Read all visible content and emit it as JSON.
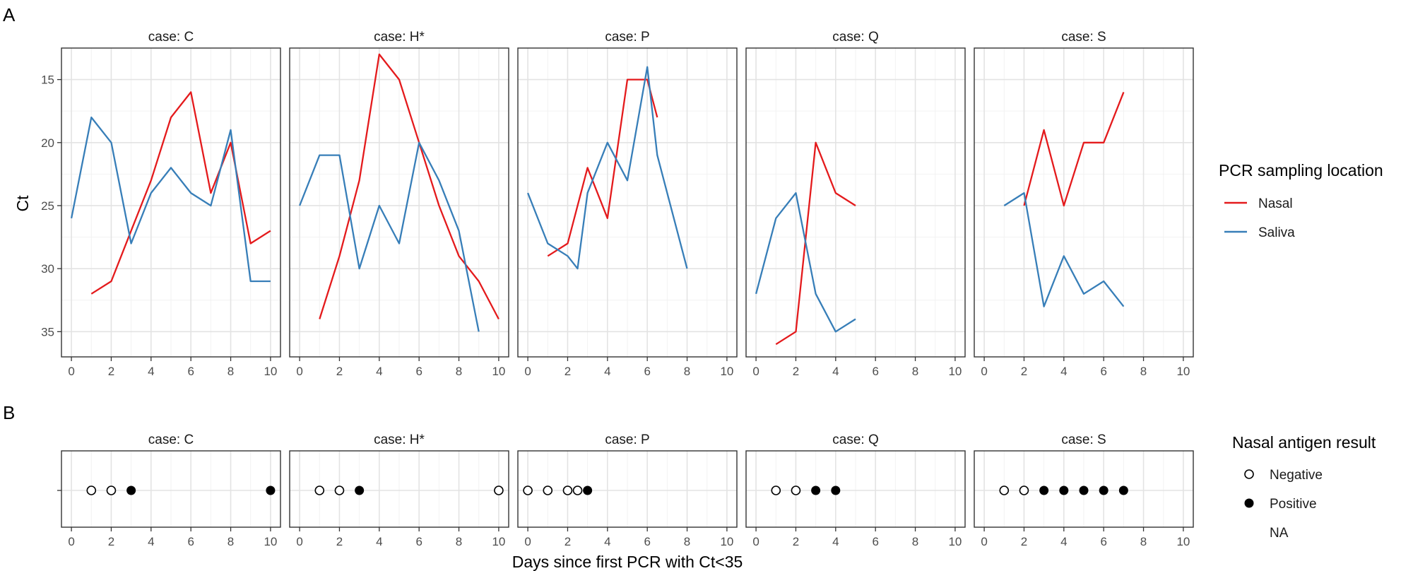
{
  "figure": {
    "panel_a_label": "A",
    "panel_b_label": "B",
    "y_axis_title": "Ct",
    "x_axis_title": "Days since first PCR with Ct<35"
  },
  "legend_pcr": {
    "title": "PCR sampling location",
    "items": [
      {
        "label": "Nasal",
        "color": "#E41A1C"
      },
      {
        "label": "Saliva",
        "color": "#377EB8"
      }
    ]
  },
  "legend_antigen": {
    "title": "Nasal antigen result",
    "items": [
      {
        "label": "Negative",
        "symbol": "open-circle"
      },
      {
        "label": "Positive",
        "symbol": "filled-circle"
      },
      {
        "label": "NA",
        "symbol": "none"
      }
    ]
  },
  "chart_data": [
    {
      "type": "line",
      "panel": "A",
      "facets": [
        "case: C",
        "case: H*",
        "case: P",
        "case: Q",
        "case: S"
      ],
      "xlim": [
        -0.5,
        10.5
      ],
      "x_ticks": [
        0,
        2,
        4,
        6,
        8,
        10
      ],
      "ylim": [
        37,
        12.5
      ],
      "y_scale": "reversed",
      "y_ticks": [
        15,
        20,
        25,
        30,
        35
      ],
      "grid": true,
      "legend_position": "right",
      "series": [
        {
          "facet": "case: C",
          "name": "Nasal",
          "x": [
            1,
            2,
            3,
            4,
            5,
            6,
            7,
            8,
            9,
            10
          ],
          "y": [
            32,
            31,
            27,
            23,
            18,
            16,
            24,
            20,
            28,
            27
          ]
        },
        {
          "facet": "case: C",
          "name": "Saliva",
          "x": [
            0,
            1,
            2,
            3,
            4,
            5,
            6,
            7,
            8,
            9,
            10
          ],
          "y": [
            26,
            18,
            20,
            28,
            24,
            22,
            24,
            25,
            19,
            31,
            31
          ]
        },
        {
          "facet": "case: H*",
          "name": "Nasal",
          "x": [
            1,
            2,
            3,
            4,
            5,
            6,
            7,
            8,
            9,
            10
          ],
          "y": [
            34,
            29,
            23,
            13,
            15,
            20,
            25,
            29,
            31,
            34
          ]
        },
        {
          "facet": "case: H*",
          "name": "Saliva",
          "x": [
            0,
            1,
            2,
            3,
            4,
            5,
            6,
            7,
            8,
            9
          ],
          "y": [
            25,
            21,
            21,
            30,
            25,
            28,
            20,
            23,
            27,
            35
          ]
        },
        {
          "facet": "case: P",
          "name": "Nasal",
          "x": [
            1,
            2,
            3,
            4,
            5,
            6,
            6.5
          ],
          "y": [
            29,
            28,
            22,
            26,
            15,
            15,
            18
          ]
        },
        {
          "facet": "case: P",
          "name": "Saliva",
          "x": [
            0,
            1,
            2,
            2.5,
            3,
            4,
            5,
            6,
            6.5,
            8
          ],
          "y": [
            24,
            28,
            29,
            30,
            24,
            20,
            23,
            14,
            21,
            30
          ]
        },
        {
          "facet": "case: Q",
          "name": "Nasal",
          "x": [
            1,
            2,
            3,
            4,
            5
          ],
          "y": [
            36,
            35,
            20,
            24,
            25
          ]
        },
        {
          "facet": "case: Q",
          "name": "Saliva",
          "x": [
            0,
            1,
            2,
            3,
            4,
            5
          ],
          "y": [
            32,
            26,
            24,
            32,
            35,
            34
          ]
        },
        {
          "facet": "case: S",
          "name": "Nasal",
          "x": [
            2,
            3,
            4,
            5,
            6,
            7
          ],
          "y": [
            25,
            19,
            25,
            20,
            20,
            16
          ]
        },
        {
          "facet": "case: S",
          "name": "Saliva",
          "x": [
            1,
            2,
            3,
            4,
            5,
            6,
            7
          ],
          "y": [
            25,
            24,
            33,
            29,
            32,
            31,
            33
          ]
        }
      ]
    },
    {
      "type": "scatter",
      "panel": "B",
      "facets": [
        "case: C",
        "case: H*",
        "case: P",
        "case: Q",
        "case: S"
      ],
      "xlim": [
        -0.5,
        10.5
      ],
      "x_ticks": [
        0,
        2,
        4,
        6,
        8,
        10
      ],
      "grid": true,
      "legend_position": "right",
      "points": [
        {
          "facet": "case: C",
          "x": [
            1,
            2,
            3,
            10
          ],
          "result": [
            "Negative",
            "Negative",
            "Positive",
            "Positive"
          ]
        },
        {
          "facet": "case: H*",
          "x": [
            1,
            2,
            3,
            10
          ],
          "result": [
            "Negative",
            "Negative",
            "Positive",
            "Negative"
          ]
        },
        {
          "facet": "case: P",
          "x": [
            0,
            1,
            2,
            2.5,
            3
          ],
          "result": [
            "Negative",
            "Negative",
            "Negative",
            "Negative",
            "Positive"
          ]
        },
        {
          "facet": "case: Q",
          "x": [
            1,
            2,
            3,
            4
          ],
          "result": [
            "Negative",
            "Negative",
            "Positive",
            "Positive"
          ]
        },
        {
          "facet": "case: S",
          "x": [
            1,
            2,
            3,
            4,
            5,
            6,
            7
          ],
          "result": [
            "Negative",
            "Negative",
            "Positive",
            "Positive",
            "Positive",
            "Positive",
            "Positive"
          ]
        }
      ]
    }
  ]
}
